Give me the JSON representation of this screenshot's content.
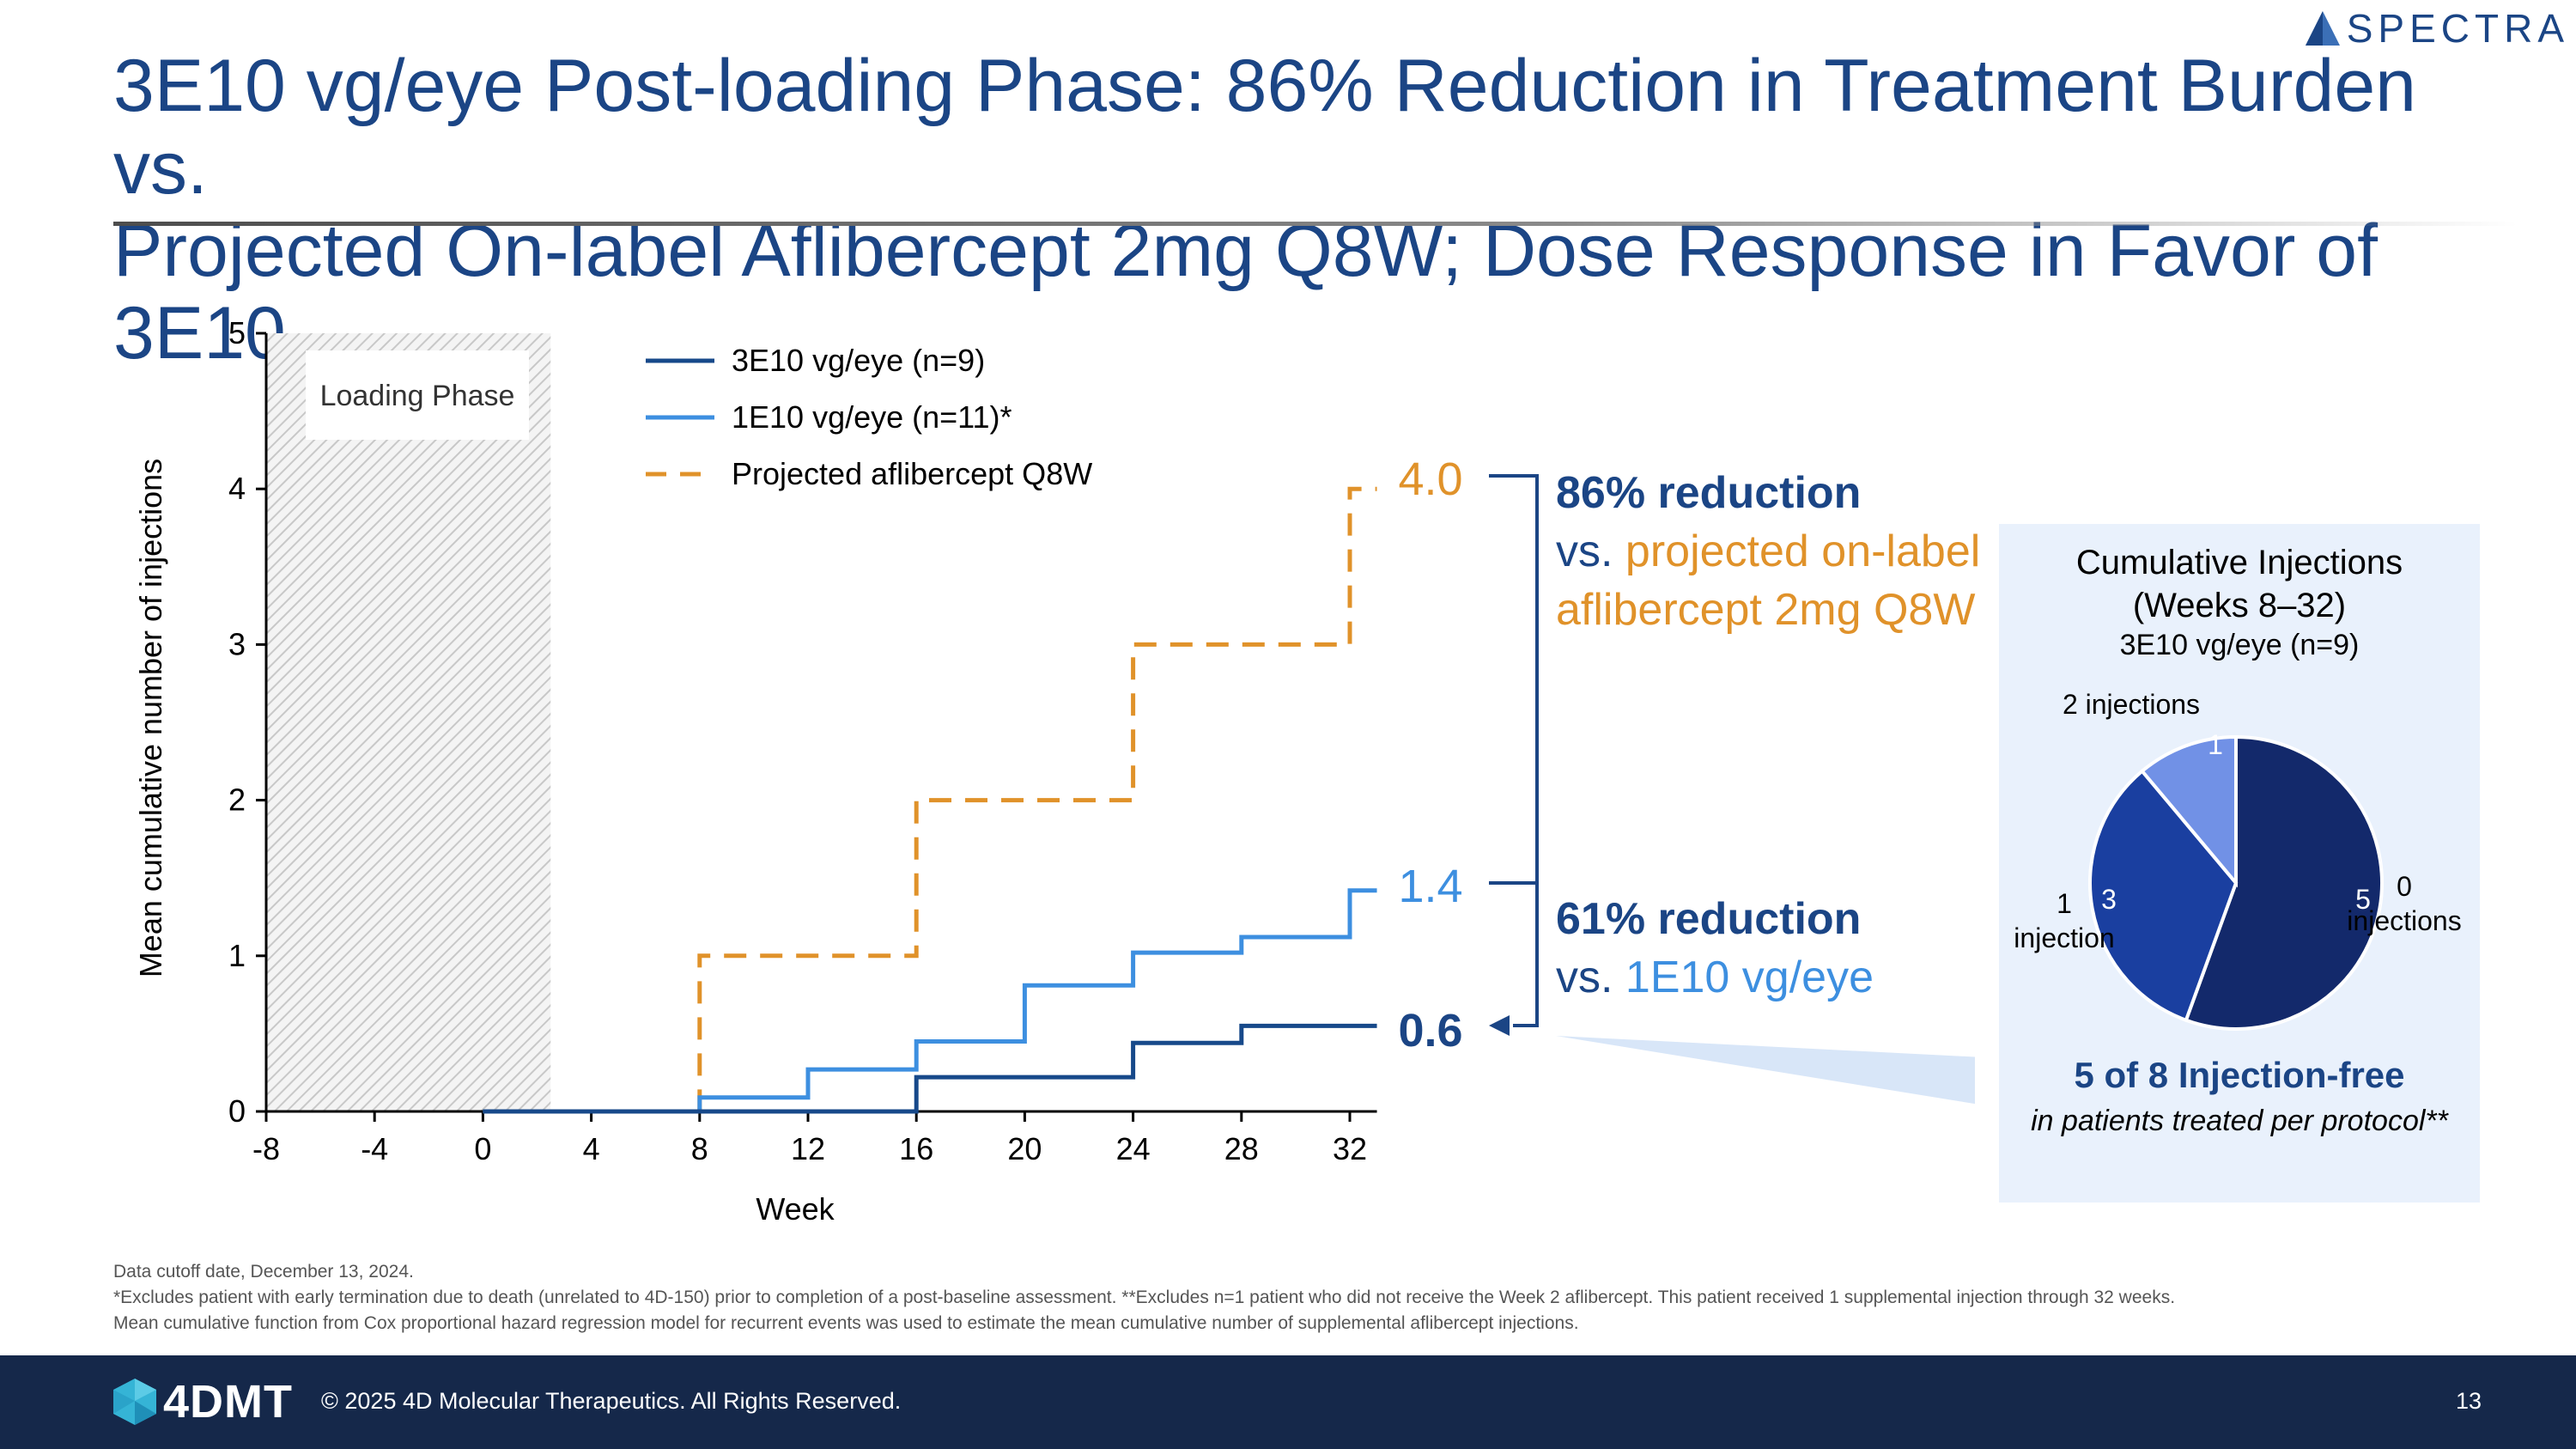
{
  "header": {
    "title_line1": "3E10 vg/eye Post-loading Phase:  86% Reduction in Treatment Burden vs.",
    "title_line2": "Projected On-label Aflibercept 2mg Q8W; Dose Response in Favor of 3E10",
    "partner_logo": "SPECTRA"
  },
  "chart_data": [
    {
      "type": "line",
      "step": true,
      "xlabel": "Week",
      "ylabel": "Mean cumulative number of injections",
      "xlim": [
        -8,
        33
      ],
      "ylim": [
        0,
        5
      ],
      "xticks": [
        "-8",
        "-4",
        "0",
        "4",
        "8",
        "12",
        "16",
        "20",
        "24",
        "28",
        "32"
      ],
      "yticks": [
        "0",
        "1",
        "2",
        "3",
        "4",
        "5"
      ],
      "shaded_region": {
        "label": "Loading Phase",
        "x_from": -8,
        "x_to": 2.5
      },
      "legend_position": "top",
      "series": [
        {
          "name": "3E10 vg/eye (n=9)",
          "color": "#17498a",
          "dash": "solid",
          "x": [
            0,
            16,
            16,
            24,
            24,
            28,
            28,
            33
          ],
          "y": [
            0,
            0,
            0.22,
            0.22,
            0.44,
            0.44,
            0.55,
            0.55
          ],
          "end_label": "0.6"
        },
        {
          "name": "1E10 vg/eye (n=11)*",
          "color": "#3d8fe0",
          "dash": "solid",
          "x": [
            0,
            8,
            8,
            12,
            12,
            16,
            16,
            20,
            20,
            24,
            24,
            28,
            28,
            32,
            32,
            33
          ],
          "y": [
            0,
            0,
            0.09,
            0.09,
            0.27,
            0.27,
            0.45,
            0.45,
            0.81,
            0.81,
            1.02,
            1.02,
            1.12,
            1.12,
            1.42,
            1.42
          ],
          "end_label": "1.4"
        },
        {
          "name": "Projected aflibercept Q8W",
          "color": "#e0922a",
          "dash": "dashed",
          "x": [
            0,
            8,
            8,
            16,
            16,
            24,
            24,
            32,
            32,
            33
          ],
          "y": [
            0,
            0,
            1,
            1,
            2,
            2,
            3,
            3,
            4,
            4
          ],
          "end_label": "4.0"
        }
      ]
    },
    {
      "type": "pie",
      "title": "Cumulative Injections (Weeks 8–32)",
      "subtitle": "3E10 vg/eye (n=9)",
      "slices": [
        {
          "label": "0 injections",
          "value": 5,
          "color": "#13296b"
        },
        {
          "label": "1 injection",
          "value": 3,
          "color": "#1a3fa0"
        },
        {
          "label": "2 injections",
          "value": 1,
          "color": "#7191e6"
        }
      ]
    }
  ],
  "callouts": {
    "top_bold": "86% reduction",
    "top_vs": "vs.",
    "top_orange": "projected on-label aflibercept 2mg Q8W",
    "bottom_bold": "61% reduction",
    "bottom_vs": "vs.",
    "bottom_blue": "1E10 vg/eye"
  },
  "pie_panel": {
    "title_line1": "Cumulative Injections",
    "title_line2": "(Weeks 8–32)",
    "subtitle": "3E10 vg/eye (n=9)",
    "label_two": "2 injections",
    "label_one_a": "1",
    "label_one_b": "injection",
    "label_zero_a": "0",
    "label_zero_b": "injections",
    "injection_free": "5 of 8 Injection-free",
    "note": "in patients treated per protocol**"
  },
  "footnotes": {
    "line1": "Data cutoff date, December 13, 2024.",
    "line2": "*Excludes patient with early termination due to death (unrelated to 4D-150) prior to completion of a post-baseline assessment. **Excludes n=1 patient who did not receive the Week 2 aflibercept. This patient received 1 supplemental injection through 32 weeks.",
    "line3": "Mean cumulative function from Cox proportional hazard regression model for recurrent events was used to estimate the mean cumulative number of supplemental aflibercept injections."
  },
  "footer": {
    "logo": "4DMT",
    "copyright": "© 2025 4D Molecular Therapeutics. All Rights Reserved.",
    "page_number": "13"
  }
}
